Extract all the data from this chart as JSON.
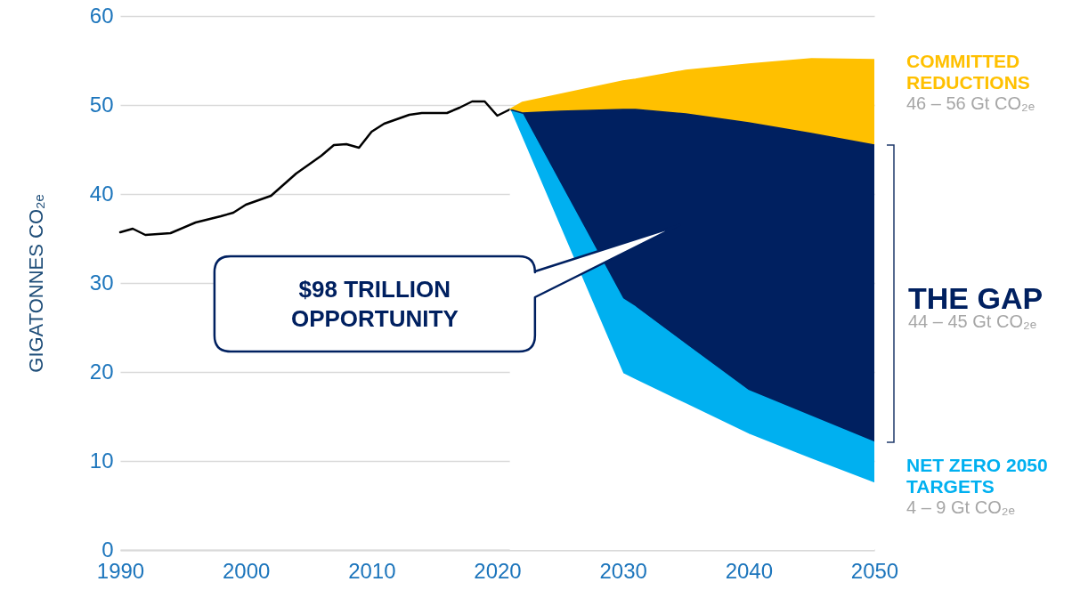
{
  "chart_data": {
    "type": "area",
    "stacked": true,
    "ylabel": "GIGATONNES CO₂ₑ",
    "xlim": [
      1990,
      2050
    ],
    "xticks": [
      1990,
      2000,
      2010,
      2020,
      2030,
      2040,
      2050
    ],
    "ylim": [
      0,
      60
    ],
    "yticks": [
      0,
      10,
      20,
      30,
      40,
      50,
      60
    ],
    "grid": "y",
    "x": [
      2021,
      2022,
      2025,
      2030,
      2031,
      2035,
      2040,
      2045,
      2050
    ],
    "annotations": [
      "$98 TRILLION OPPORTUNITY",
      "46 – 56 Gt CO₂ₑ",
      "44 – 45 Gt CO₂ₑ",
      "4 – 9 Gt CO₂ₑ"
    ],
    "series": [
      {
        "type": "line",
        "color": "#000000",
        "x": [
          1990,
          1991,
          1992,
          1994,
          1996,
          1998,
          1999,
          2000,
          2002,
          2004,
          2006,
          2007,
          2008,
          2009,
          2010,
          2011,
          2012,
          2013,
          2014,
          2016,
          2017,
          2018,
          2019,
          2020,
          2021
        ],
        "values": [
          35.7,
          36.1,
          35.4,
          35.6,
          36.8,
          37.5,
          37.9,
          38.8,
          39.8,
          42.3,
          44.3,
          45.5,
          45.6,
          45.2,
          47.0,
          47.9,
          48.4,
          48.9,
          49.1,
          49.1,
          49.7,
          50.4,
          50.4,
          48.8,
          49.5
        ]
      },
      {
        "color": "#ffffff",
        "values": [
          49.5,
          46.2,
          36.3,
          19.8,
          19.1,
          16.4,
          13.0,
          10.2,
          7.5
        ]
      },
      {
        "name": "NET ZERO 2050 TARGETS",
        "color": "#00b0f0",
        "values": [
          0,
          2.8,
          4.9,
          8.4,
          8.2,
          6.7,
          4.9,
          4.8,
          4.6
        ]
      },
      {
        "name": "THE GAP",
        "color": "#002060",
        "values": [
          0,
          0.1,
          8.1,
          21.3,
          22.2,
          25.9,
          30.1,
          31.8,
          33.4
        ]
      },
      {
        "name": "COMMITTED REDUCTIONS",
        "color": "#ffc000",
        "values": [
          0,
          1.2,
          1.9,
          3.2,
          3.4,
          4.9,
          6.6,
          8.4,
          9.6
        ]
      }
    ]
  }
}
